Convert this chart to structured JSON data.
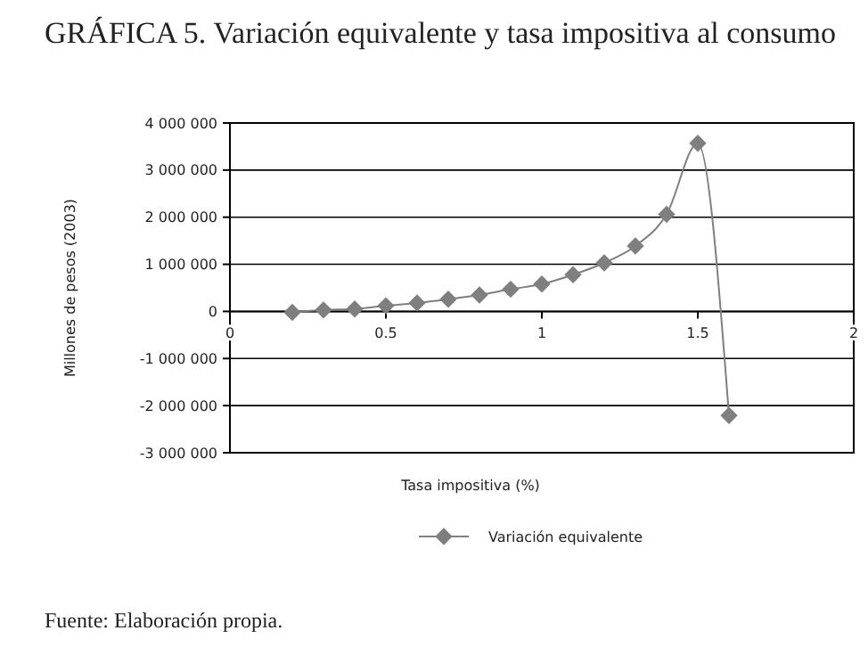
{
  "chart_data": {
    "type": "line",
    "title": "GRÁFICA 5. Variación equivalente y tasa impositiva al consumo",
    "xlabel": "Tasa impositiva (%)",
    "ylabel": "Millones de pesos (2003)",
    "x": [
      0.2,
      0.3,
      0.4,
      0.5,
      0.6,
      0.7,
      0.8,
      0.9,
      1.0,
      1.1,
      1.2,
      1.3,
      1.4,
      1.5,
      1.6
    ],
    "series": [
      {
        "name": "Variación equivalente",
        "color": "#7f7f7f",
        "values": [
          -20000,
          30000,
          50000,
          120000,
          180000,
          260000,
          350000,
          470000,
          580000,
          780000,
          1030000,
          1390000,
          2060000,
          3570000,
          -2210000
        ]
      }
    ],
    "xlim": [
      0,
      2
    ],
    "xticks": [
      0,
      0.5,
      1,
      1.5,
      2
    ],
    "ylim": [
      -3000000,
      4000000
    ],
    "yticks": [
      {
        "value": -3000000,
        "label": "-3 000 000"
      },
      {
        "value": -2000000,
        "label": "-2 000 000"
      },
      {
        "value": -1000000,
        "label": "-1 000 000"
      },
      0,
      {
        "value": 1000000,
        "label": "1 000 000"
      },
      {
        "value": 2000000,
        "label": "2 000 000"
      },
      {
        "value": 3000000,
        "label": "3 000 000"
      },
      {
        "value": 4000000,
        "label": "4 000 000"
      }
    ],
    "grid": "y",
    "legend": "bottom",
    "marker": "diamond",
    "line_style": "solid",
    "annotations": [
      "Fuente: Elaboración propia."
    ]
  }
}
